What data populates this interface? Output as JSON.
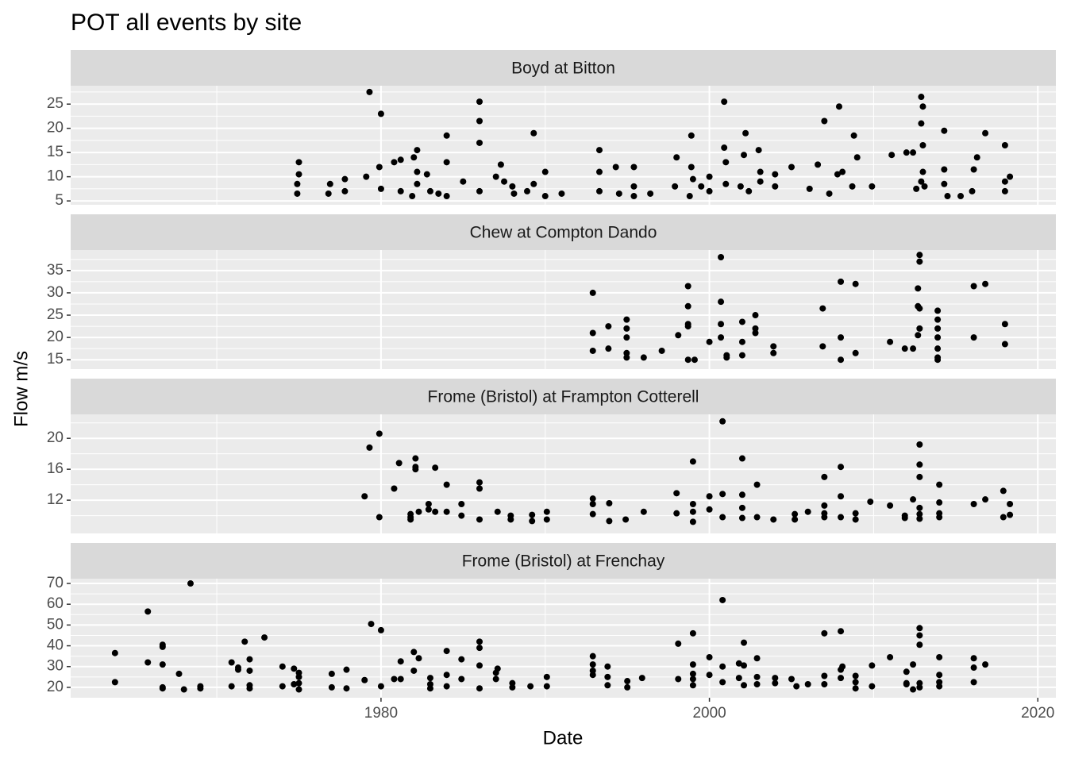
{
  "chart_data": {
    "type": "scatter",
    "title": "POT all events by site",
    "x_label": "Date",
    "y_label": "Flow m/s",
    "xlim": [
      1961.1,
      2021.1
    ],
    "xticks": [
      1980,
      2000,
      2020
    ],
    "xminor": [
      1970,
      1990,
      2010
    ],
    "color": "#000000",
    "grid": true,
    "panels": [
      {
        "title": "Boyd at Bitton",
        "ylim": [
          4.2,
          28.8
        ],
        "yticks": [
          5,
          10,
          15,
          20,
          25
        ],
        "yminor": [
          7.5,
          12.5,
          17.5,
          22.5,
          27.5
        ],
        "x": [
          1975.0,
          1975.0,
          1974.9,
          1974.9,
          1976.9,
          1976.8,
          1977.8,
          1977.8,
          1979.1,
          1979.3,
          1979.9,
          1980.0,
          1980.0,
          1980.8,
          1981.2,
          1981.2,
          1982.0,
          1982.2,
          1982.2,
          1982.2,
          1981.9,
          1982.8,
          1983.0,
          1983.5,
          1984.0,
          1984.0,
          1984.0,
          1985.0,
          1986.0,
          1986.0,
          1986.0,
          1986.0,
          1987.0,
          1987.3,
          1987.5,
          1988.0,
          1988.1,
          1988.9,
          1989.3,
          1989.3,
          1990.0,
          1990.0,
          1991.0,
          1993.3,
          1993.3,
          1993.3,
          1994.3,
          1994.5,
          1995.4,
          1995.4,
          1995.4,
          1996.4,
          1997.9,
          1998.0,
          1998.9,
          1998.9,
          1999.0,
          1998.8,
          1999.5,
          2000.0,
          2000.0,
          2000.9,
          2000.9,
          2001.0,
          2001.0,
          2001.9,
          2002.1,
          2002.2,
          2002.4,
          2003.0,
          2003.1,
          2003.1,
          2004.0,
          2004.0,
          2005.0,
          2006.6,
          2006.1,
          2007.0,
          2007.3,
          2007.9,
          2007.8,
          2008.1,
          2008.8,
          2009.0,
          2008.7,
          2009.9,
          2011.1,
          2012.0,
          2012.4,
          2012.9,
          2013.0,
          2012.9,
          2013.0,
          2013.0,
          2012.9,
          2012.6,
          2013.1,
          2014.3,
          2014.3,
          2014.3,
          2014.5,
          2015.3,
          2016.0,
          2016.1,
          2016.3,
          2016.8,
          2018.0,
          2018.0,
          2018.0,
          2018.3
        ],
        "y": [
          13,
          10.5,
          8.5,
          6.5,
          8.5,
          6.5,
          7,
          9.5,
          10,
          27.5,
          12,
          23,
          7.5,
          13,
          13.5,
          7,
          14,
          15.5,
          11,
          8.5,
          6,
          10.5,
          7,
          6.5,
          18.5,
          13,
          6,
          9,
          25.5,
          21.5,
          17,
          7,
          10,
          12.5,
          9,
          8,
          6.5,
          7,
          19,
          8.5,
          11,
          6,
          6.5,
          15.5,
          11,
          7,
          12,
          6.5,
          12,
          8,
          6,
          6.5,
          8,
          14,
          18.5,
          12,
          9.5,
          6,
          8,
          10,
          7,
          25.5,
          16,
          13,
          8.5,
          8,
          14.5,
          19,
          7,
          15.5,
          11,
          9,
          10.5,
          8,
          12,
          12.5,
          7.5,
          21.5,
          6.5,
          24.5,
          10.5,
          11,
          18.5,
          14,
          8,
          8,
          14.5,
          15,
          15,
          26.5,
          24.5,
          21,
          16.5,
          11,
          9,
          7.5,
          8,
          19.5,
          11.5,
          8.5,
          6,
          6,
          7,
          11.5,
          14,
          19,
          16.5,
          9,
          7,
          10
        ]
      },
      {
        "title": "Chew at Compton Dando",
        "ylim": [
          12.9,
          39.6
        ],
        "yticks": [
          15,
          20,
          25,
          30,
          35
        ],
        "yminor": [
          17.5,
          22.5,
          27.5,
          32.5,
          37.5
        ],
        "x": [
          1992.9,
          1992.9,
          1992.9,
          1993.85,
          1993.85,
          1994.96,
          1994.96,
          1994.96,
          1994.96,
          1994.96,
          1996.0,
          1997.1,
          1998.1,
          1998.7,
          1998.7,
          1998.7,
          1998.7,
          1998.7,
          1999.1,
          2000.0,
          2000.7,
          2000.7,
          2000.7,
          2000.7,
          2001.05,
          2001.05,
          2002.0,
          2002.0,
          2002.0,
          2002.8,
          2002.8,
          2002.8,
          2003.9,
          2003.9,
          2006.9,
          2006.9,
          2008.0,
          2008.0,
          2008.0,
          2008.9,
          2008.9,
          2011.0,
          2011.9,
          2012.4,
          2012.7,
          2012.7,
          2012.7,
          2012.8,
          2012.8,
          2012.8,
          2012.8,
          2013.9,
          2013.9,
          2013.9,
          2013.9,
          2013.9,
          2013.9,
          2013.9,
          2016.1,
          2016.1,
          2016.8,
          2018.0,
          2018.0
        ],
        "y": [
          30,
          21,
          17,
          22.5,
          17.5,
          24,
          22,
          20,
          16.5,
          15.5,
          15.5,
          17,
          20.5,
          27,
          23,
          31.5,
          22.5,
          15,
          15,
          19,
          38,
          28,
          23,
          20,
          15.5,
          16,
          23.5,
          19,
          16,
          25,
          22,
          21,
          18,
          16.5,
          26.5,
          18,
          32.5,
          20,
          15,
          32,
          16.5,
          19,
          17.5,
          17.5,
          31,
          27,
          20.5,
          38.5,
          37,
          26.5,
          22,
          26,
          24,
          22,
          20,
          17.5,
          15.5,
          15,
          31.5,
          20,
          32,
          23,
          18.5
        ]
      },
      {
        "title": "Frome (Bristol) at Frampton Cotterell",
        "ylim": [
          7.7,
          23.1
        ],
        "yticks": [
          12,
          16,
          20
        ],
        "yminor": [
          10,
          14,
          18,
          22
        ],
        "x": [
          1979.0,
          1979.3,
          1979.9,
          1979.9,
          1980.8,
          1981.1,
          1981.8,
          1981.8,
          1981.8,
          1982.1,
          1982.1,
          1982.1,
          1982.3,
          1982.9,
          1982.9,
          1983.3,
          1983.3,
          1984.0,
          1984.0,
          1984.9,
          1984.9,
          1986.0,
          1986.0,
          1986.0,
          1987.1,
          1987.9,
          1987.9,
          1989.2,
          1989.2,
          1990.1,
          1990.1,
          1992.9,
          1992.9,
          1992.9,
          1993.9,
          1993.9,
          1994.9,
          1996.0,
          1998.0,
          1998.0,
          1999.0,
          1999.0,
          1999.0,
          1999.0,
          2000.0,
          2000.0,
          2000.8,
          2000.8,
          2000.8,
          2002.0,
          2002.0,
          2002.0,
          2002.0,
          2002.9,
          2002.9,
          2003.9,
          2005.2,
          2005.2,
          2006.0,
          2007.0,
          2007.0,
          2007.0,
          2007.0,
          2008.0,
          2008.0,
          2008.0,
          2008.9,
          2008.9,
          2009.8,
          2011.0,
          2011.9,
          2011.9,
          2012.4,
          2012.8,
          2012.8,
          2012.8,
          2012.8,
          2012.8,
          2012.8,
          2014.0,
          2014.0,
          2014.0,
          2014.0,
          2016.1,
          2016.8,
          2017.9,
          2017.9,
          2018.3,
          2018.3
        ],
        "y": [
          12.5,
          18.8,
          20.6,
          9.8,
          13.5,
          16.8,
          10.2,
          9.8,
          9.5,
          17.4,
          16.3,
          16,
          10.5,
          11.5,
          10.8,
          16.2,
          10.5,
          14,
          10.5,
          11.5,
          10,
          14.3,
          13.5,
          9.5,
          10.5,
          10,
          9.5,
          10.1,
          9.3,
          10.5,
          9.5,
          12.2,
          11.5,
          10.2,
          11.6,
          9.3,
          9.5,
          10.5,
          12.9,
          10.3,
          17,
          11.5,
          10.5,
          9.2,
          12.5,
          10.8,
          22.2,
          12.8,
          9.8,
          17.4,
          12.7,
          11,
          9.7,
          14,
          9.8,
          9.5,
          10.2,
          9.5,
          10.5,
          15,
          11.3,
          10.3,
          9.8,
          16.3,
          12.5,
          9.8,
          10.3,
          9.5,
          11.8,
          11.3,
          10,
          9.7,
          12.1,
          19.2,
          16.6,
          15,
          11,
          10.2,
          9.6,
          14,
          11.7,
          10.3,
          9.8,
          11.5,
          12.1,
          13.2,
          9.8,
          11.5,
          10.1
        ]
      },
      {
        "title": "Frome (Bristol) at Frenchay",
        "ylim": [
          15.0,
          72.3
        ],
        "yticks": [
          20,
          30,
          40,
          50,
          60,
          70
        ],
        "yminor": [
          25,
          35,
          45,
          55,
          65
        ],
        "x": [
          1963.8,
          1963.8,
          1965.8,
          1965.8,
          1966.7,
          1966.7,
          1966.7,
          1966.7,
          1966.7,
          1967.7,
          1968.0,
          1968.4,
          1969.0,
          1969.0,
          1970.9,
          1970.9,
          1971.3,
          1971.3,
          1971.7,
          1972.0,
          1972.0,
          1972.0,
          1972.0,
          1972.9,
          1974.0,
          1974.0,
          1974.7,
          1974.7,
          1975.0,
          1975.0,
          1975.0,
          1975.0,
          1977.0,
          1977.0,
          1977.9,
          1977.9,
          1979.0,
          1979.4,
          1980.0,
          1980.0,
          1980.8,
          1981.2,
          1981.2,
          1982.0,
          1982.0,
          1982.3,
          1983.0,
          1983.0,
          1983.0,
          1984.0,
          1984.0,
          1984.0,
          1984.9,
          1984.9,
          1986.0,
          1986.0,
          1986.0,
          1986.0,
          1987.0,
          1987.0,
          1987.1,
          1988.0,
          1988.0,
          1989.1,
          1990.1,
          1990.1,
          1992.9,
          1992.9,
          1992.9,
          1992.9,
          1993.8,
          1993.8,
          1993.8,
          1995.0,
          1995.0,
          1995.9,
          1998.1,
          1998.1,
          1999.0,
          1999.0,
          1999.0,
          1999.0,
          1999.0,
          2000.0,
          2000.0,
          2000.8,
          2000.8,
          2000.8,
          2001.8,
          2001.8,
          2002.1,
          2002.1,
          2002.1,
          2002.9,
          2002.9,
          2002.9,
          2004.0,
          2004.0,
          2005.0,
          2005.3,
          2006.0,
          2007.0,
          2007.0,
          2007.0,
          2008.0,
          2008.0,
          2008.0,
          2008.1,
          2008.9,
          2008.9,
          2008.9,
          2009.9,
          2009.9,
          2011.0,
          2012.0,
          2012.0,
          2012.0,
          2012.4,
          2012.4,
          2012.8,
          2012.8,
          2012.8,
          2012.8,
          2012.8,
          2014.0,
          2014.0,
          2014.0,
          2014.0,
          2016.1,
          2016.1,
          2016.1,
          2016.8
        ],
        "y": [
          36.5,
          22.5,
          56.5,
          32,
          39.5,
          40.5,
          31,
          20,
          19.5,
          26.5,
          19,
          70,
          20.5,
          19.5,
          32,
          20.5,
          29.5,
          28.5,
          42,
          33.5,
          28,
          21,
          19.5,
          44,
          30,
          20.5,
          29,
          21.5,
          27,
          25,
          22,
          19,
          26.5,
          20,
          28.5,
          19.5,
          23.5,
          50.5,
          47.5,
          20.5,
          24,
          32.5,
          24,
          37,
          28,
          34,
          24.5,
          21.5,
          19.5,
          37.5,
          26,
          20.5,
          33.5,
          24,
          42,
          39,
          30.5,
          19.5,
          27,
          24,
          29,
          22,
          20,
          20.5,
          25,
          20.5,
          35,
          31,
          28,
          26,
          30,
          25,
          21,
          23,
          20,
          24.5,
          41,
          24,
          46,
          31,
          26.5,
          24,
          21,
          34.5,
          26,
          62,
          30,
          22.5,
          31.5,
          24.5,
          41.5,
          30.5,
          21,
          34,
          25,
          21.5,
          24.5,
          22,
          24,
          20.5,
          21.5,
          46,
          25.5,
          21.5,
          47,
          28.5,
          24.5,
          30,
          25.5,
          22.5,
          19.5,
          30.5,
          20.5,
          34.5,
          27.5,
          22,
          21.5,
          31,
          19,
          48.5,
          45,
          40.5,
          22,
          20,
          34.5,
          26,
          22.5,
          20.5,
          34,
          29.5,
          22.5,
          31
        ]
      }
    ]
  }
}
